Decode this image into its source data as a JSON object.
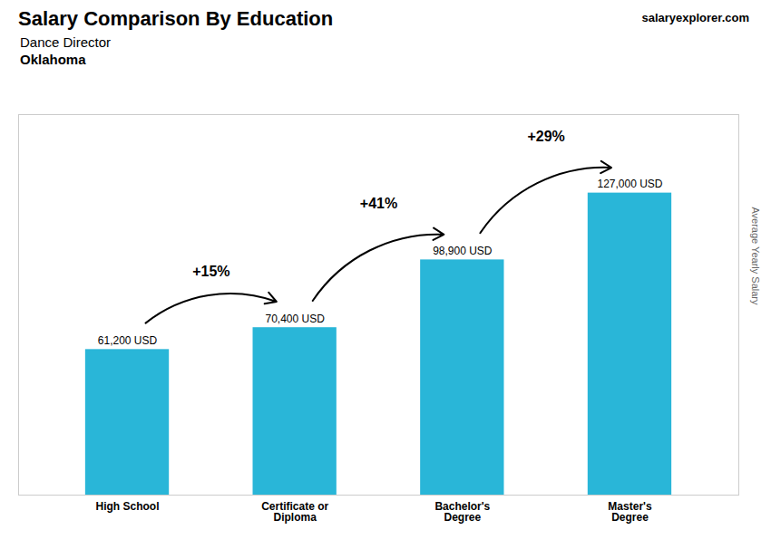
{
  "chart_data": {
    "type": "bar",
    "title": "Salary Comparison By Education",
    "subtitle": [
      "Dance Director",
      "Oklahoma"
    ],
    "ylabel": "Average Yearly Salary",
    "categories": [
      "High School",
      "Certificate or\nDiploma",
      "Bachelor's\nDegree",
      "Master's\nDegree"
    ],
    "values": [
      61200,
      70400,
      98900,
      127000
    ],
    "value_labels": [
      "61,200 USD",
      "70,400 USD",
      "98,900 USD",
      "127,000 USD"
    ],
    "data_labels": true,
    "color": "#29b6d8",
    "ylim": [
      0,
      160000
    ],
    "tick_labels": "x",
    "annotations": [
      {
        "text": "+15%",
        "from": "High School",
        "to": "Certificate or\nDiploma"
      },
      {
        "text": "+41%",
        "from": "Certificate or\nDiploma",
        "to": "Bachelor's\nDegree"
      },
      {
        "text": "+29%",
        "from": "Bachelor's\nDegree",
        "to": "Master's\nDegree"
      },
      {
        "text": "salaryexplorer.com"
      }
    ]
  }
}
